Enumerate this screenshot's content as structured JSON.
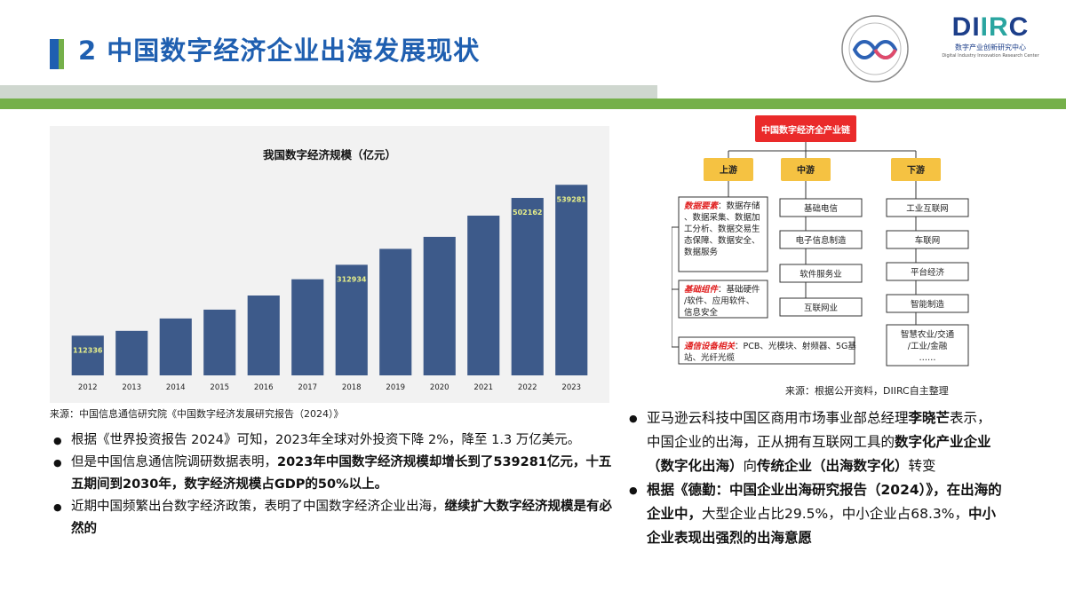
{
  "header": {
    "title": "2 中国数字经济企业出海发展现状",
    "logo_word_main": "DI",
    "logo_word_accent": "IR",
    "logo_word_end": "C",
    "logo_cn": "数字产业创新研究中心",
    "logo_en": "Digital Industry Innovation Research Center",
    "accent_color": "#1f5fb0",
    "green_color": "#75b04a"
  },
  "chart_data": {
    "type": "bar",
    "title": "我国数字经济规模（亿元）",
    "categories": [
      "2012",
      "2013",
      "2014",
      "2015",
      "2016",
      "2017",
      "2018",
      "2019",
      "2020",
      "2021",
      "2022",
      "2023"
    ],
    "values": [
      112336,
      126000,
      161000,
      186000,
      226000,
      272000,
      312934,
      358000,
      392000,
      452000,
      502162,
      539281
    ],
    "data_labels": {
      "0": "112336",
      "6": "312934",
      "10": "502162",
      "11": "539281"
    },
    "ylim": [
      0,
      560000
    ],
    "bar_color": "#3d5a8a",
    "label_color": "#e8f08a",
    "grid": false
  },
  "chart_source": "来源：中国信息通信研究院《中国数字经济发展研究报告（2024）》",
  "chain": {
    "title": "中国数字经济全产业链",
    "upstream": "上游",
    "midstream": "中游",
    "downstream": "下游",
    "up_items": [
      {
        "lead": "数据要素",
        "text": "：数据存储、数据采集、数据加工分析、数据交易生态保障、数据安全、数据服务"
      },
      {
        "lead": "基础组件",
        "text": "：基础硬件/软件、应用软件、信息安全"
      },
      {
        "lead": "通信设备相关",
        "text": "：PCB、光模块、射频器、5G基站、光纤光缆"
      }
    ],
    "mid_items": [
      "基础电信",
      "电子信息制造",
      "软件服务业",
      "互联网业"
    ],
    "down_items": [
      "工业互联网",
      "车联网",
      "平台经济",
      "智能制造",
      "智慧农业/交通/工业/金融……"
    ],
    "source": "来源：根据公开资料，DIIRC自主整理"
  },
  "left_bullets": [
    {
      "parts": [
        {
          "t": "根据《世界投资报告 2024》可知，2023年全球对外投资下降 2%，降至 1.3 万亿美元。",
          "b": false
        }
      ]
    },
    {
      "parts": [
        {
          "t": "但是中国信息通信院调研数据表明，",
          "b": false
        },
        {
          "t": "2023年中国数字经济规模却增长到了539281亿元，十五五期间到2030年，数字经济规模占GDP的50%以上。",
          "b": true
        }
      ]
    },
    {
      "parts": [
        {
          "t": "近期中国频繁出台数字经济政策，表明了中国数字经济企业出海，",
          "b": false
        },
        {
          "t": "继续扩大数字经济规模是有必然的",
          "b": true
        }
      ]
    }
  ],
  "right_bullets": [
    {
      "parts": [
        {
          "t": "亚马逊云科技中国区商用市场事业部总经理",
          "b": false
        },
        {
          "t": "李晓芒",
          "b": true
        },
        {
          "t": "表示，中国企业的出海，正从拥有互联网工具的",
          "b": false
        },
        {
          "t": "数字化产业企业（数字化出海）",
          "b": true
        },
        {
          "t": "向",
          "b": false
        },
        {
          "t": "传统企业（出海数字化）",
          "b": true
        },
        {
          "t": "转变",
          "b": false
        }
      ]
    },
    {
      "parts": [
        {
          "t": "根据《德勤：中国企业出海研究报告（2024）》，在出海的企业中，",
          "b": true
        },
        {
          "t": "大型企业占比29.5%，中小企业占68.3%，",
          "b": false
        },
        {
          "t": "中小企业表现出强烈的出海意愿",
          "b": true
        }
      ]
    }
  ]
}
